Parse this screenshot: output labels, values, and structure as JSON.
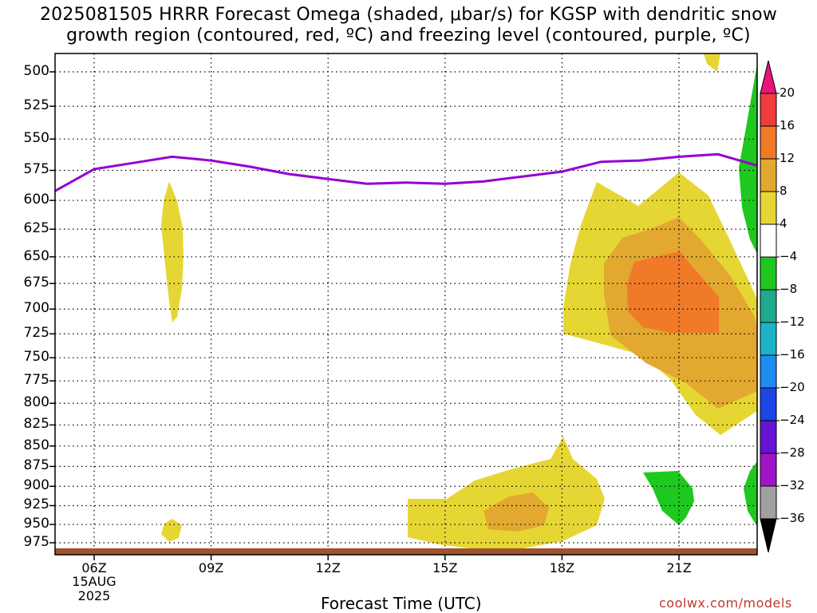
{
  "title_line1": "2025081505 HRRR Forecast Omega (shaded, μbar/s) for KGSP with dendritic snow",
  "title_line2": "growth region (contoured, red, ºC) and freezing level (contoured, purple, ºC)",
  "x_axis_title": "Forecast Time (UTC)",
  "credit": "coolwx.com/models",
  "chart_data": {
    "type": "area",
    "title": "2025081505 HRRR Forecast Omega (shaded, μbar/s) for KGSP with dendritic snow growth region (contoured, red, ºC) and freezing level (contoured, purple, ºC)",
    "xlabel": "Forecast Time (UTC)",
    "ylabel": "",
    "x_ticks": [
      "06Z",
      "09Z",
      "12Z",
      "15Z",
      "18Z",
      "21Z"
    ],
    "x_date_label": [
      "15AUG",
      "2025"
    ],
    "y_ticks": [
      500,
      525,
      550,
      575,
      600,
      625,
      650,
      675,
      700,
      725,
      750,
      775,
      800,
      825,
      850,
      875,
      900,
      925,
      950,
      975
    ],
    "y_scale": "pressure (hPa), reversed",
    "grid": true,
    "colorbar": {
      "labels": [
        "20",
        "16",
        "12",
        "8",
        "4",
        "−4",
        "−8",
        "−12",
        "−16",
        "−20",
        "−24",
        "−28",
        "−32",
        "−36"
      ],
      "colors": [
        "#e8147a",
        "#f03c3c",
        "#f07a28",
        "#e2a830",
        "#e6d634",
        "#ffffff",
        "#1ec81e",
        "#1eaa8c",
        "#1eb4c8",
        "#1e8cf0",
        "#1e46e6",
        "#6414d2",
        "#a014c8",
        "#a0a0a0",
        "#000000"
      ]
    },
    "freezing_level_hPa": {
      "color": "#9400d3",
      "x_hours": [
        5,
        6,
        7,
        8,
        9,
        10,
        11,
        12,
        13,
        14,
        15,
        16,
        17,
        18,
        19,
        20,
        21,
        22,
        23
      ],
      "values": [
        592,
        574,
        569,
        564,
        567,
        572,
        578,
        582,
        586,
        585,
        586,
        584,
        580,
        576,
        568,
        567,
        564,
        562,
        571
      ]
    },
    "series": [
      {
        "name": "4 to 8",
        "color": "#e6d634"
      },
      {
        "name": "8 to 12",
        "color": "#e2a830"
      },
      {
        "name": "12 to 16",
        "color": "#f07a28"
      },
      {
        "name": "−4 to −8",
        "color": "#1ec81e"
      }
    ]
  }
}
